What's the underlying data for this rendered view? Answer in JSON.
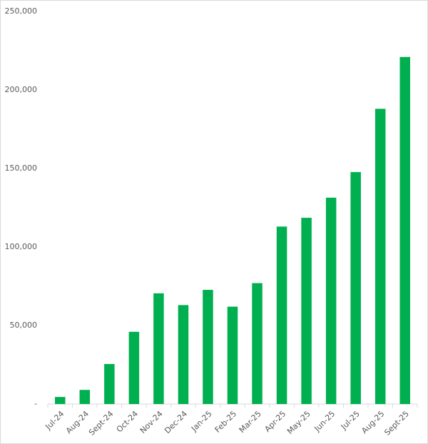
{
  "chart_data": {
    "type": "bar",
    "categories": [
      "Jul-24",
      "Aug-24",
      "Sept-24",
      "Oct-24",
      "Nov-24",
      "Dec-24",
      "Jan-25",
      "Feb-25",
      "Mar-25",
      "Apr-25",
      "May-25",
      "Jun-25",
      "Jul-25",
      "Aug-25",
      "Sept-25"
    ],
    "values": [
      4500,
      9000,
      25500,
      46000,
      70500,
      63000,
      72700,
      62000,
      77000,
      113000,
      118600,
      131400,
      147700,
      188000,
      221000
    ],
    "color": "#00b050",
    "ylim": [
      0,
      250000
    ],
    "yticks": [
      {
        "value": 0,
        "label": "-"
      },
      {
        "value": 50000,
        "label": "50,000"
      },
      {
        "value": 100000,
        "label": "100,000"
      },
      {
        "value": 150000,
        "label": "150,000"
      },
      {
        "value": 200000,
        "label": "200,000"
      },
      {
        "value": 250000,
        "label": "250,000"
      }
    ],
    "grid": false
  }
}
